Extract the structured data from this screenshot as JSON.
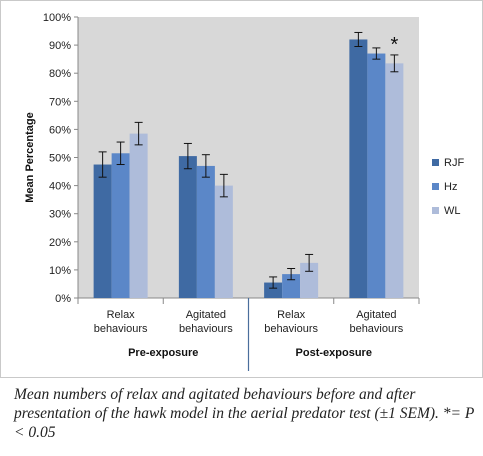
{
  "chart_data": {
    "type": "bar",
    "ylabel": "Mean Percentage",
    "ylim": [
      0,
      100
    ],
    "yticks": [
      "0%",
      "10%",
      "20%",
      "30%",
      "40%",
      "50%",
      "60%",
      "70%",
      "80%",
      "90%",
      "100%"
    ],
    "groups": [
      {
        "label": "Pre-exposure",
        "categories": [
          "Relax behaviours",
          "Agitated behaviours"
        ]
      },
      {
        "label": "Post-exposure",
        "categories": [
          "Relax behaviours",
          "Agitated behaviours"
        ]
      }
    ],
    "category_lines": [
      [
        "Relax",
        "behaviours"
      ],
      [
        "Agitated",
        "behaviours"
      ],
      [
        "Relax",
        "behaviours"
      ],
      [
        "Agitated",
        "behaviours"
      ]
    ],
    "series": [
      {
        "name": "RJF",
        "color": "#3f6aa3",
        "values": [
          47.5,
          50.5,
          5.5,
          92
        ],
        "errors": [
          4.5,
          4.5,
          2,
          2.5
        ]
      },
      {
        "name": "Hz",
        "color": "#5b87c8",
        "values": [
          51.5,
          47,
          8.5,
          87
        ],
        "errors": [
          4,
          4,
          2,
          2
        ]
      },
      {
        "name": "WL",
        "color": "#aebcda",
        "values": [
          58.5,
          40,
          12.5,
          83.5
        ],
        "errors": [
          4,
          4,
          3,
          3
        ]
      }
    ],
    "annotation": {
      "text": "*",
      "series": 2,
      "category": 3
    },
    "legend_position": "right",
    "grid": false
  },
  "caption": "Mean numbers of relax and agitated behaviours before and after presentation of the hawk model in the aerial predator test (±1 SEM). *= P < 0.05"
}
